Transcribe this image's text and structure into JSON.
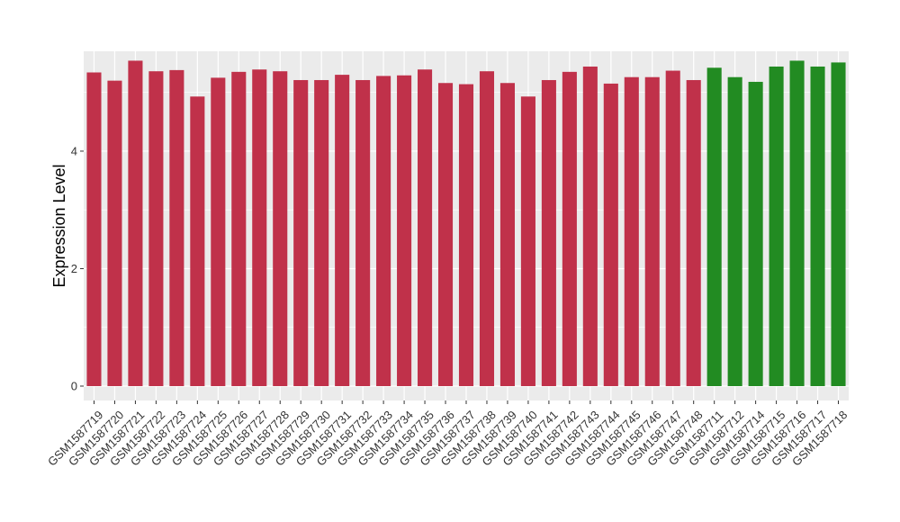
{
  "chart_data": {
    "type": "bar",
    "title": "",
    "xlabel": "",
    "ylabel": "Expression Level",
    "ylim": [
      0,
      5.7
    ],
    "y_ticks": [
      0,
      2,
      4
    ],
    "grid": true,
    "legend": "none",
    "background": "#EBEBEB",
    "gridline_color": "#FFFFFF",
    "groups": [
      {
        "color": "#C0314A"
      },
      {
        "color": "#228B22"
      }
    ],
    "categories": [
      "GSM1587719",
      "GSM1587720",
      "GSM1587721",
      "GSM1587722",
      "GSM1587723",
      "GSM1587724",
      "GSM1587725",
      "GSM1587726",
      "GSM1587727",
      "GSM1587728",
      "GSM1587729",
      "GSM1587730",
      "GSM1587731",
      "GSM1587732",
      "GSM1587733",
      "GSM1587734",
      "GSM1587735",
      "GSM1587736",
      "GSM1587737",
      "GSM1587738",
      "GSM1587739",
      "GSM1587740",
      "GSM1587741",
      "GSM1587742",
      "GSM1587743",
      "GSM1587744",
      "GSM1587745",
      "GSM1587746",
      "GSM1587747",
      "GSM1587748",
      "GSM1587711",
      "GSM1587712",
      "GSM1587714",
      "GSM1587715",
      "GSM1587716",
      "GSM1587717",
      "GSM1587718"
    ],
    "values": [
      5.34,
      5.2,
      5.54,
      5.36,
      5.38,
      4.93,
      5.25,
      5.35,
      5.39,
      5.36,
      5.21,
      5.21,
      5.3,
      5.21,
      5.28,
      5.29,
      5.39,
      5.16,
      5.14,
      5.36,
      5.16,
      4.93,
      5.21,
      5.35,
      5.44,
      5.15,
      5.26,
      5.26,
      5.37,
      5.21,
      5.42,
      5.26,
      5.18,
      5.44,
      5.54,
      5.44,
      5.51
    ],
    "group_index": [
      0,
      0,
      0,
      0,
      0,
      0,
      0,
      0,
      0,
      0,
      0,
      0,
      0,
      0,
      0,
      0,
      0,
      0,
      0,
      0,
      0,
      0,
      0,
      0,
      0,
      0,
      0,
      0,
      0,
      0,
      1,
      1,
      1,
      1,
      1,
      1,
      1
    ]
  }
}
